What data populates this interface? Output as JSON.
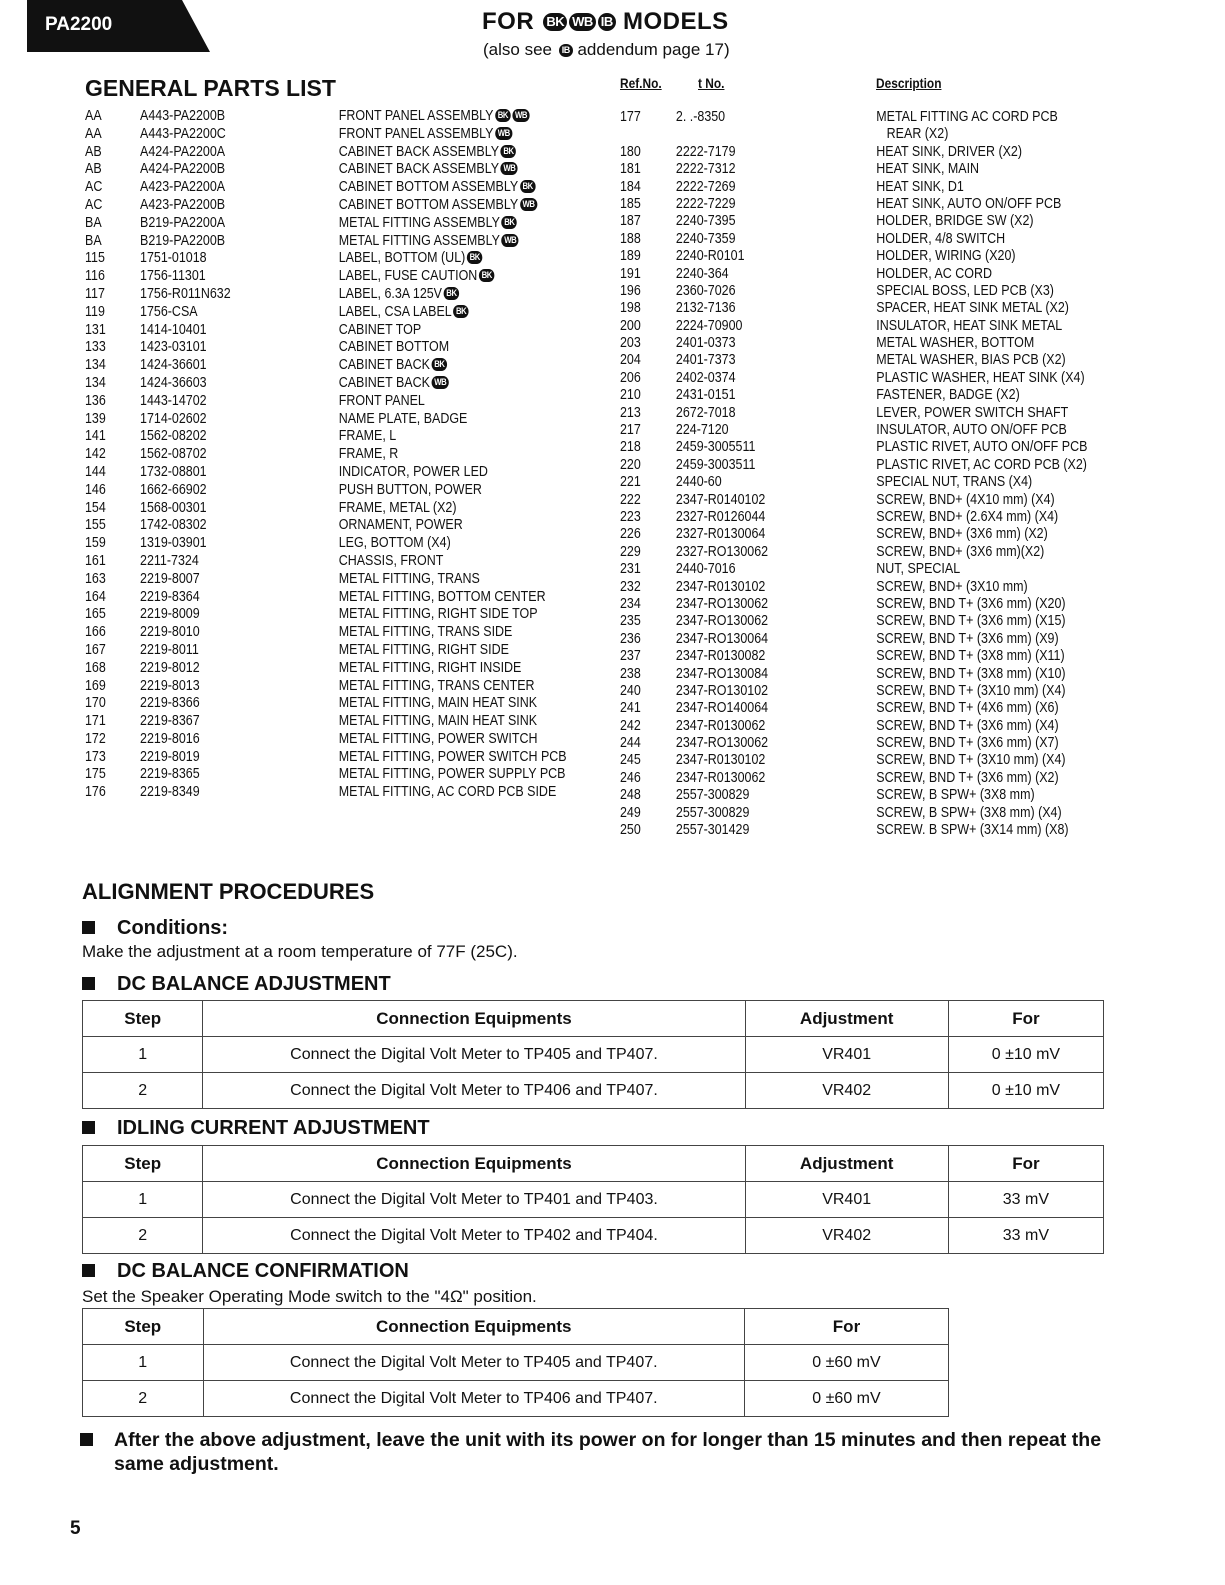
{
  "header": {
    "model": "PA2200",
    "title_pre": "FOR",
    "title_badges": [
      "BK",
      "WB",
      "IB"
    ],
    "title_post": "MODELS",
    "subtitle_pre": "(also see",
    "subtitle_badge": "IB",
    "subtitle_post": "addendum page 17)"
  },
  "parts": {
    "title": "GENERAL PARTS LIST",
    "col_ref": "Ref.No.",
    "col_part": "t No.",
    "col_desc": "Description",
    "left": [
      [
        "AA",
        "A443-PA2200B",
        "FRONT PANEL ASSEMBLY",
        [
          "BK",
          "WB"
        ]
      ],
      [
        "AA",
        "A443-PA2200C",
        "FRONT PANEL ASSEMBLY",
        [
          "WB"
        ]
      ],
      [
        "AB",
        "A424-PA2200A",
        "CABINET BACK ASSEMBLY",
        [
          "BK"
        ]
      ],
      [
        "AB",
        "A424-PA2200B",
        "CABINET BACK ASSEMBLY",
        [
          "WB"
        ]
      ],
      [
        "AC",
        "A423-PA2200A",
        "CABINET BOTTOM ASSEMBLY",
        [
          "BK"
        ]
      ],
      [
        "AC",
        "A423-PA2200B",
        "CABINET BOTTOM ASSEMBLY",
        [
          "WB"
        ]
      ],
      [
        "BA",
        "B219-PA2200A",
        "METAL FITTING ASSEMBLY",
        [
          "BK"
        ]
      ],
      [
        "BA",
        "B219-PA2200B",
        "METAL FITTING ASSEMBLY",
        [
          "WB"
        ]
      ],
      [
        "115",
        "1751-01018",
        "LABEL, BOTTOM (UL)",
        [
          "BK"
        ]
      ],
      [
        "116",
        "1756-11301",
        "LABEL, FUSE CAUTION",
        [
          "BK"
        ]
      ],
      [
        "117",
        "1756-R011N632",
        "LABEL, 6.3A 125V",
        [
          "BK"
        ]
      ],
      [
        "119",
        "1756-CSA",
        "LABEL, CSA LABEL",
        [
          "BK"
        ]
      ],
      [
        "131",
        "1414-10401",
        "CABINET TOP",
        []
      ],
      [
        "133",
        "1423-03101",
        "CABINET BOTTOM",
        []
      ],
      [
        "134",
        "1424-36601",
        "CABINET BACK",
        [
          "BK"
        ]
      ],
      [
        "134",
        "1424-36603",
        "CABINET BACK",
        [
          "WB"
        ]
      ],
      [
        "136",
        "1443-14702",
        "FRONT PANEL",
        []
      ],
      [
        "139",
        "1714-02602",
        "NAME PLATE, BADGE",
        []
      ],
      [
        "141",
        "1562-08202",
        "FRAME, L",
        []
      ],
      [
        "142",
        "1562-08702",
        "FRAME, R",
        []
      ],
      [
        "144",
        "1732-08801",
        "INDICATOR, POWER LED",
        []
      ],
      [
        "146",
        "1662-66902",
        "PUSH BUTTON, POWER",
        []
      ],
      [
        "154",
        "1568-00301",
        "FRAME, METAL (X2)",
        []
      ],
      [
        "155",
        "1742-08302",
        "ORNAMENT, POWER",
        []
      ],
      [
        "159",
        "1319-03901",
        "LEG, BOTTOM (X4)",
        []
      ],
      [
        "161",
        "2211-7324",
        "CHASSIS, FRONT",
        []
      ],
      [
        "163",
        "2219-8007",
        "METAL FITTING, TRANS",
        []
      ],
      [
        "164",
        "2219-8364",
        "METAL FITTING, BOTTOM CENTER",
        []
      ],
      [
        "165",
        "2219-8009",
        "METAL FITTING, RIGHT SIDE TOP",
        []
      ],
      [
        "166",
        "2219-8010",
        "METAL FITTING, TRANS SIDE",
        []
      ],
      [
        "167",
        "2219-8011",
        "METAL FITTING, RIGHT SIDE",
        []
      ],
      [
        "168",
        "2219-8012",
        "METAL FITTING, RIGHT INSIDE",
        []
      ],
      [
        "169",
        "2219-8013",
        "METAL FITTING, TRANS CENTER",
        []
      ],
      [
        "170",
        "2219-8366",
        "METAL FITTING, MAIN HEAT SINK",
        []
      ],
      [
        "171",
        "2219-8367",
        "METAL FITTING, MAIN HEAT SINK",
        []
      ],
      [
        "172",
        "2219-8016",
        "METAL FITTING, POWER SWITCH",
        []
      ],
      [
        "173",
        "2219-8019",
        "METAL FITTING, POWER SWITCH PCB",
        []
      ],
      [
        "175",
        "2219-8365",
        "METAL FITTING, POWER SUPPLY PCB",
        []
      ],
      [
        "176",
        "2219-8349",
        "METAL FITTING, AC CORD PCB SIDE",
        []
      ]
    ],
    "right": [
      [
        "177",
        "2.  .-8350",
        "METAL FITTING AC CORD PCB"
      ],
      [
        "",
        "",
        "   REAR (X2)"
      ],
      [
        "180",
        "2222-7179",
        "HEAT SINK, DRIVER (X2)"
      ],
      [
        "181",
        "2222-7312",
        "HEAT SINK, MAIN"
      ],
      [
        "184",
        "2222-7269",
        "HEAT SINK, D1"
      ],
      [
        "185",
        "2222-7229",
        "HEAT SINK, AUTO ON/OFF PCB"
      ],
      [
        "187",
        "2240-7395",
        "HOLDER, BRIDGE SW (X2)"
      ],
      [
        "188",
        "2240-7359",
        "HOLDER, 4/8 SWITCH"
      ],
      [
        "189",
        "2240-R0101",
        "HOLDER, WIRING (X20)"
      ],
      [
        "191",
        "2240-364",
        "HOLDER, AC CORD"
      ],
      [
        "196",
        "2360-7026",
        "SPECIAL BOSS, LED PCB (X3)"
      ],
      [
        "198",
        "2132-7136",
        "SPACER, HEAT SINK METAL (X2)"
      ],
      [
        "200",
        "2224-70900",
        "INSULATOR, HEAT SINK METAL"
      ],
      [
        "203",
        "2401-0373",
        "METAL WASHER, BOTTOM"
      ],
      [
        "204",
        "2401-7373",
        "METAL WASHER, BIAS PCB (X2)"
      ],
      [
        "206",
        "2402-0374",
        "PLASTIC WASHER, HEAT SINK (X4)"
      ],
      [
        "210",
        "2431-0151",
        "FASTENER, BADGE (X2)"
      ],
      [
        "213",
        "2672-7018",
        "LEVER, POWER SWITCH SHAFT"
      ],
      [
        "217",
        "224-7120",
        "INSULATOR, AUTO ON/OFF PCB"
      ],
      [
        "218",
        "2459-3005511",
        "PLASTIC RIVET, AUTO ON/OFF PCB"
      ],
      [
        "220",
        "2459-3003511",
        "PLASTIC RIVET, AC CORD PCB (X2)"
      ],
      [
        "221",
        "2440-60",
        "SPECIAL NUT, TRANS (X4)"
      ],
      [
        "222",
        "2347-R0140102",
        "SCREW, BND+ (4X10 mm) (X4)"
      ],
      [
        "223",
        "2327-R0126044",
        "SCREW, BND+ (2.6X4 mm) (X4)"
      ],
      [
        "226",
        "2327-R0130064",
        "SCREW, BND+ (3X6 mm) (X2)"
      ],
      [
        "229",
        "2327-RO130062",
        "SCREW, BND+ (3X6 mm)(X2)"
      ],
      [
        "231",
        "2440-7016",
        "NUT, SPECIAL"
      ],
      [
        "232",
        "2347-R0130102",
        "SCREW, BND+ (3X10 mm)"
      ],
      [
        "234",
        "2347-RO130062",
        "SCREW, BND T+ (3X6 mm) (X20)"
      ],
      [
        "235",
        "2347-RO130062",
        "SCREW, BND T+ (3X6 mm) (X15)"
      ],
      [
        "236",
        "2347-RO130064",
        "SCREW, BND T+ (3X6 mm) (X9)"
      ],
      [
        "237",
        "2347-R0130082",
        "SCREW, BND T+ (3X8 mm) (X11)"
      ],
      [
        "238",
        "2347-RO130084",
        "SCREW, BND T+ (3X8 mm) (X10)"
      ],
      [
        "240",
        "2347-RO130102",
        "SCREW, BND T+ (3X10 mm) (X4)"
      ],
      [
        "241",
        "2347-RO140064",
        "SCREW, BND T+ (4X6 mm) (X6)"
      ],
      [
        "242",
        "2347-R0130062",
        "SCREW, BND T+ (3X6 mm) (X4)"
      ],
      [
        "244",
        "2347-RO130062",
        "SCREW, BND T+ (3X6 mm) (X7)"
      ],
      [
        "245",
        "2347-R0130102",
        "SCREW, BND T+ (3X10 mm) (X4)"
      ],
      [
        "246",
        "2347-R0130062",
        "SCREW, BND T+ (3X6 mm) (X2)"
      ],
      [
        "248",
        "2557-300829",
        "SCREW, B SPW+ (3X8 mm)"
      ],
      [
        "249",
        "2557-300829",
        "SCREW, B SPW+ (3X8 mm) (X4)"
      ],
      [
        "250",
        "2557-301429",
        "SCREW. B SPW+ (3X14 mm) (X8)"
      ]
    ]
  },
  "alignment": {
    "title": "ALIGNMENT PROCEDURES",
    "conditions_title": "Conditions:",
    "conditions_text": "Make the adjustment at a room temperature of 77F (25C).",
    "dc_balance": {
      "title": "DC BALANCE ADJUSTMENT",
      "headers": [
        "Step",
        "Connection Equipments",
        "Adjustment",
        "For"
      ],
      "rows": [
        [
          "1",
          "Connect the Digital Volt Meter to TP405 and TP407.",
          "VR401",
          "0 ±10 mV"
        ],
        [
          "2",
          "Connect the Digital Volt Meter to TP406 and TP407.",
          "VR402",
          "0 ±10 mV"
        ]
      ]
    },
    "idling": {
      "title": "IDLING CURRENT ADJUSTMENT",
      "headers": [
        "Step",
        "Connection Equipments",
        "Adjustment",
        "For"
      ],
      "rows": [
        [
          "1",
          "Connect the Digital Volt Meter to TP401 and TP403.",
          "VR401",
          "33 mV"
        ],
        [
          "2",
          "Connect the Digital Volt Meter to TP402 and TP404.",
          "VR402",
          "33 mV"
        ]
      ]
    },
    "confirm": {
      "title": "DC BALANCE CONFIRMATION",
      "note": "Set the Speaker Operating Mode switch to the \"4Ω\" position.",
      "headers": [
        "Step",
        "Connection Equipments",
        "For"
      ],
      "rows": [
        [
          "1",
          "Connect the Digital Volt Meter to TP405 and TP407.",
          "0 ±60 mV"
        ],
        [
          "2",
          "Connect the Digital Volt Meter to TP406 and TP407.",
          "0 ±60 mV"
        ]
      ]
    },
    "final_note": "After the above adjustment, leave the unit with its power on for longer than 15 minutes and then repeat the same adjustment."
  },
  "page_number": "5"
}
